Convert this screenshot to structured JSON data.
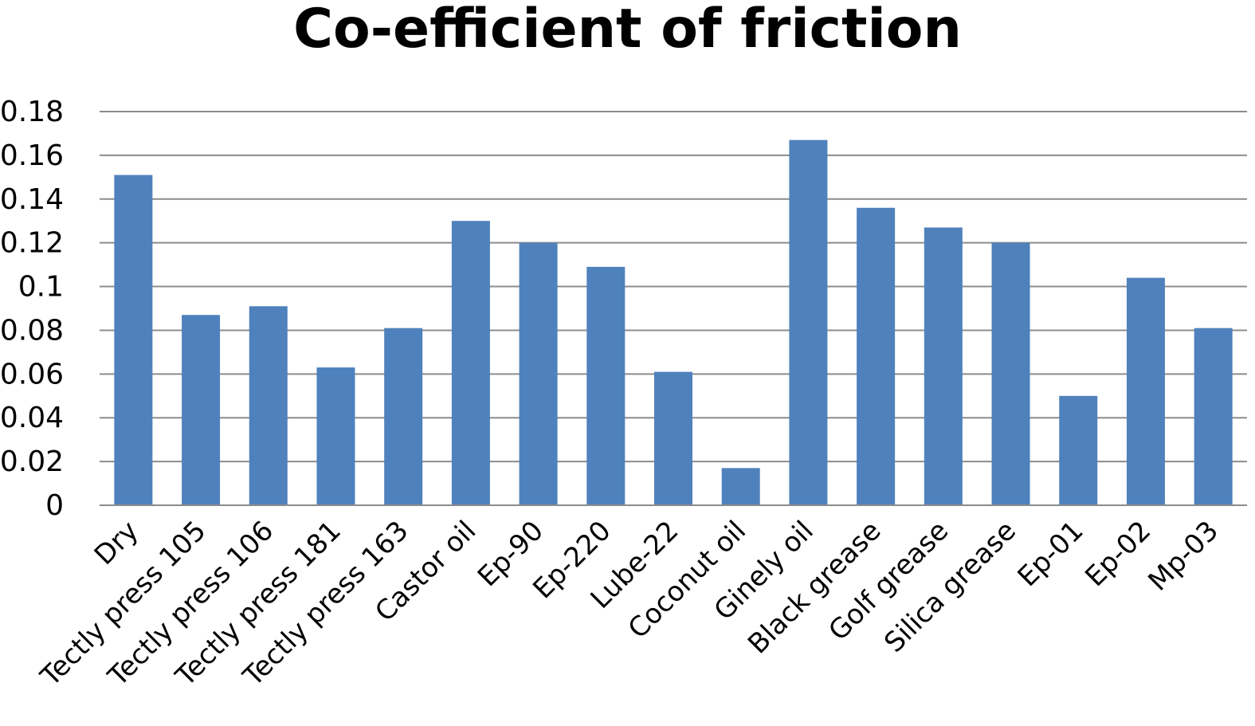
{
  "chart_data": {
    "type": "bar",
    "title": "Co-efficient of friction",
    "xlabel": "",
    "ylabel": "",
    "ylim": [
      0,
      0.18
    ],
    "yticks": [
      "0",
      "0.02",
      "0.04",
      "0.06",
      "0.08",
      "0.1",
      "0.12",
      "0.14",
      "0.16",
      "0.18"
    ],
    "grid": true,
    "legend": "none",
    "bar_color": "#4F81BD",
    "categories": [
      "Dry",
      "Tectly press 105",
      "Tectly press 106",
      "Tectly press 181",
      "Tectly press 163",
      "Castor oil",
      "Ep-90",
      "Ep-220",
      "Lube-22",
      "Coconut oil",
      "Ginely oil",
      "Black grease",
      "Golf grease",
      "Silica grease",
      "Ep-01",
      "Ep-02",
      "Mp-03"
    ],
    "values": [
      0.151,
      0.087,
      0.091,
      0.063,
      0.081,
      0.13,
      0.12,
      0.109,
      0.061,
      0.017,
      0.167,
      0.136,
      0.127,
      0.12,
      0.05,
      0.104,
      0.081
    ]
  }
}
